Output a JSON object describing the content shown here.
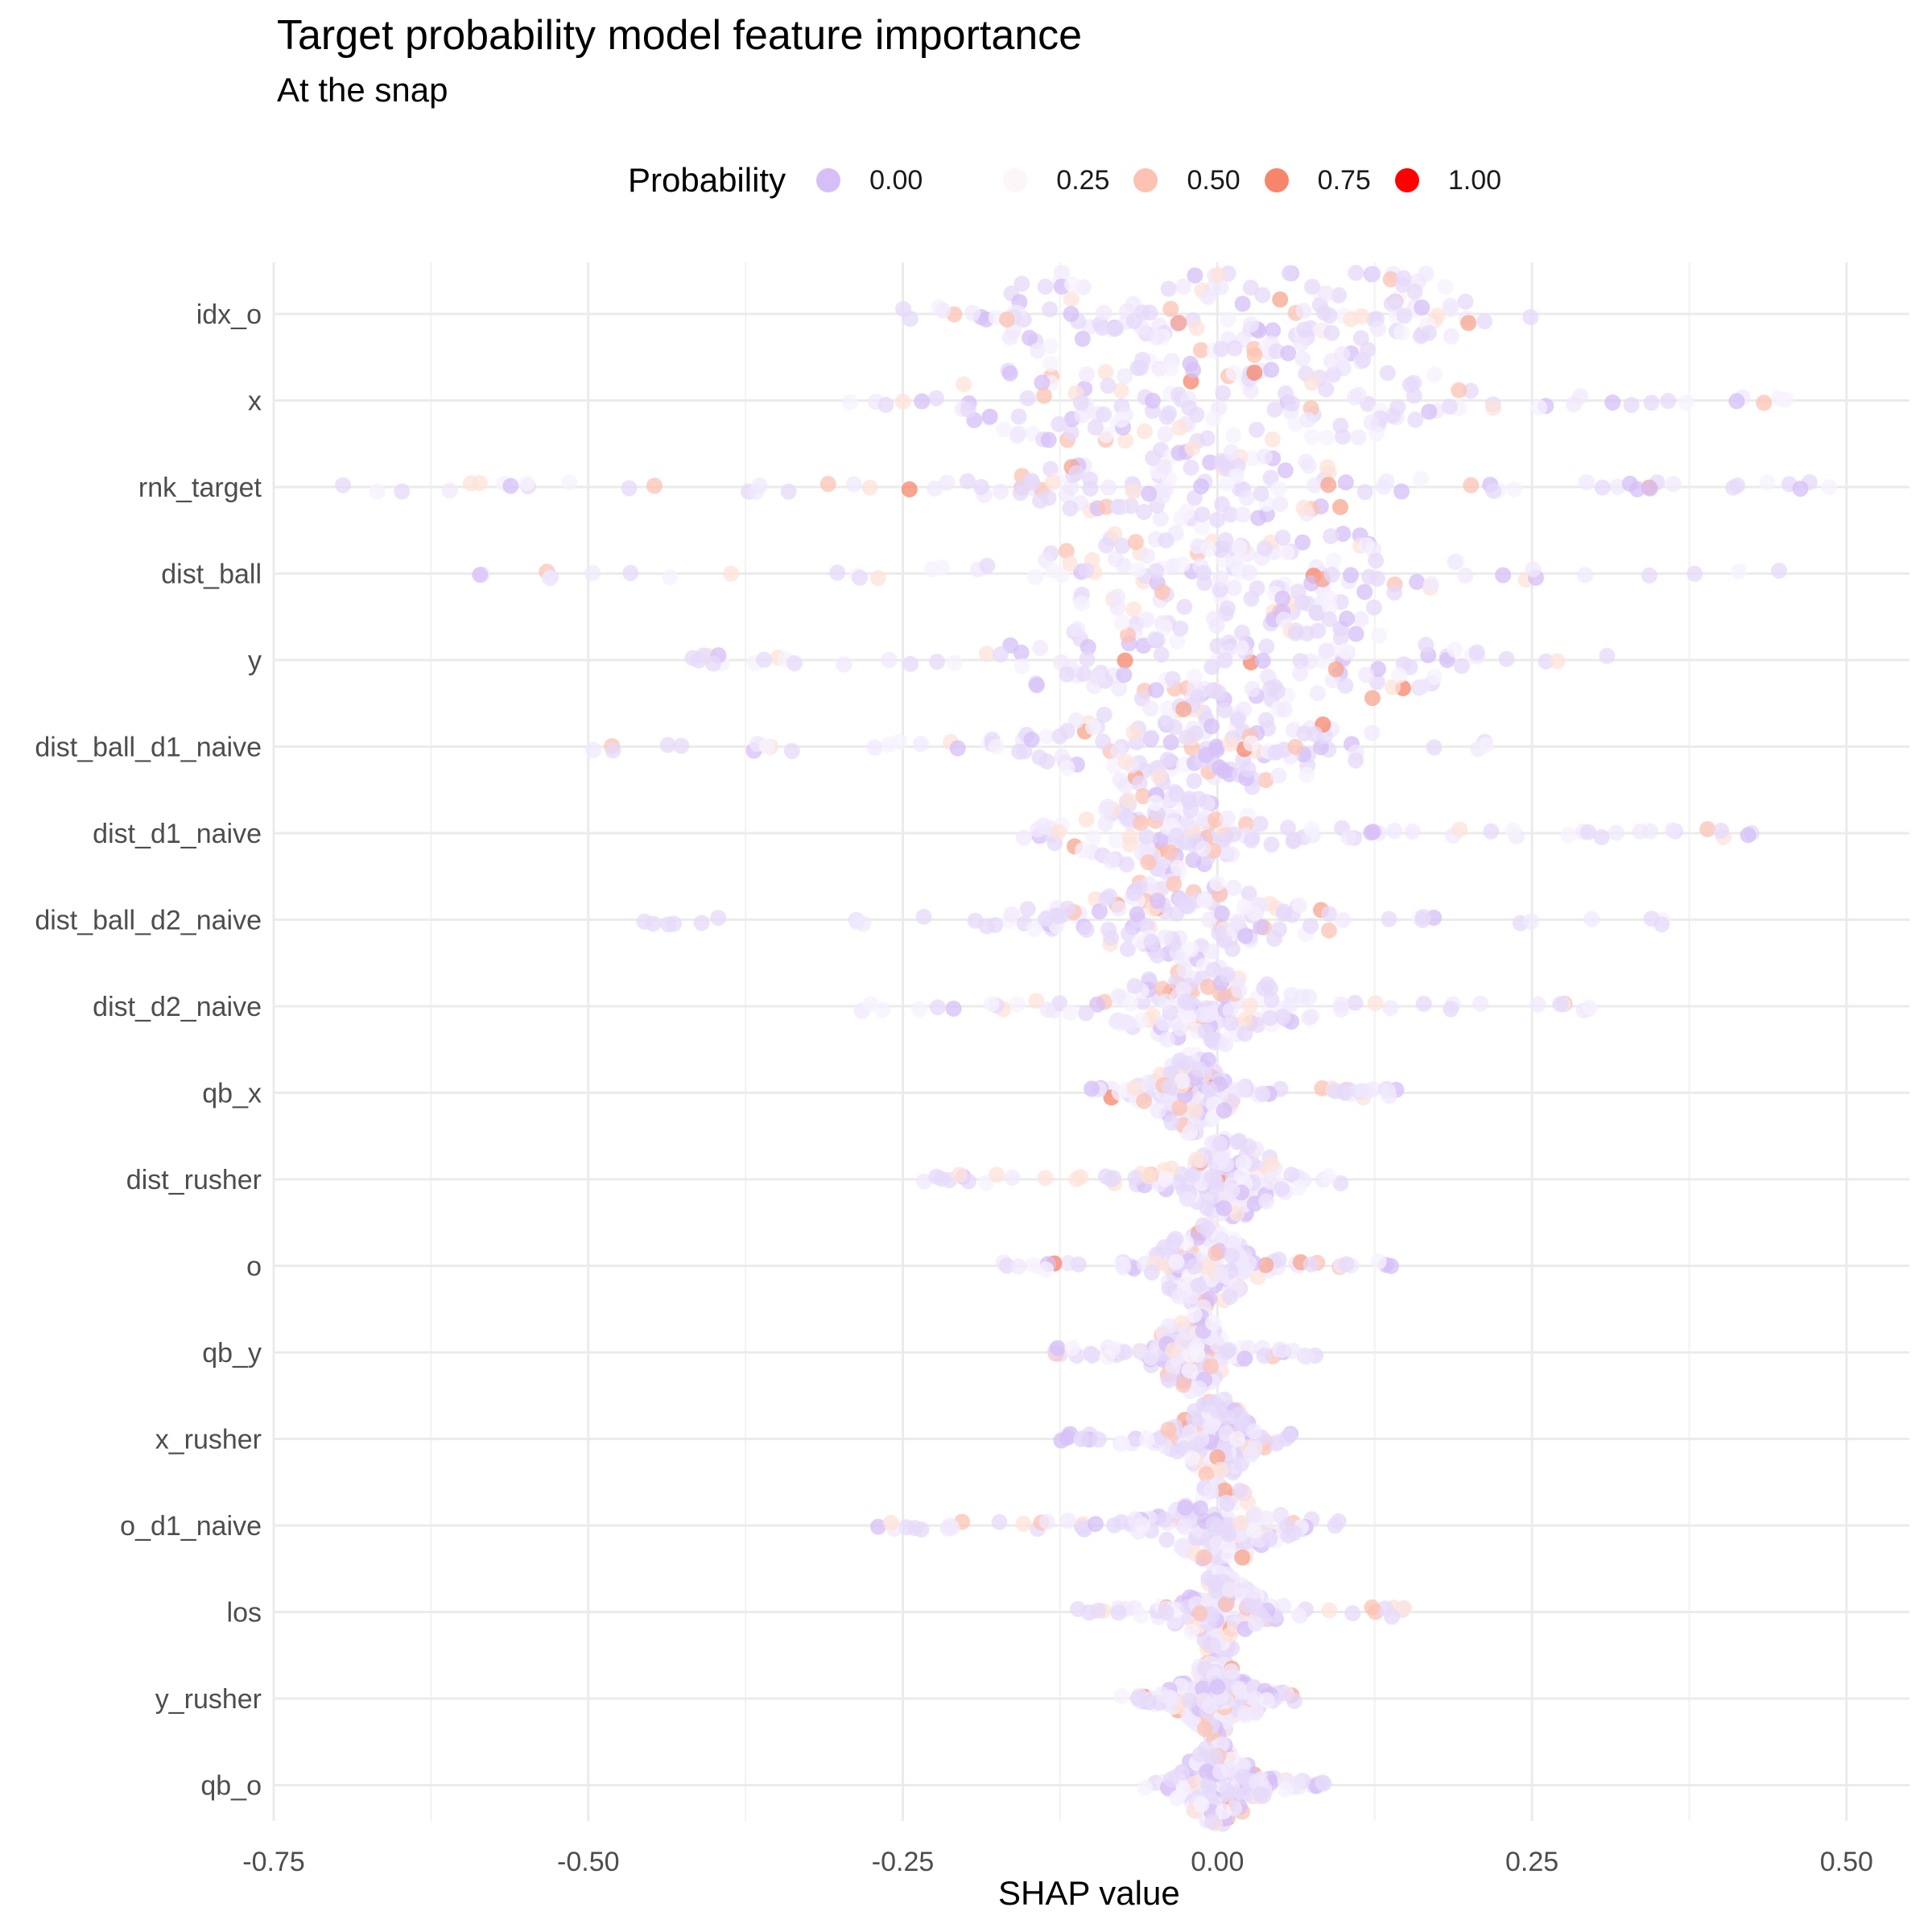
{
  "title": "Target probability model feature importance",
  "subtitle": "At the snap",
  "legend": {
    "title": "Probability",
    "items": [
      {
        "label": "0.00",
        "color": "#d6bff7"
      },
      {
        "label": "0.25",
        "color": "#ffffff"
      },
      {
        "label": "0.50",
        "color": "#fcc3b3"
      },
      {
        "label": "0.75",
        "color": "#f7856b"
      },
      {
        "label": "1.00",
        "color": "#ff0000"
      }
    ]
  },
  "chart_data": {
    "type": "scatter",
    "subtype": "beeswarm-violin",
    "title": "Target probability model feature importance",
    "subtitle": "At the snap",
    "xlabel": "SHAP value",
    "ylabel": "",
    "xlim": [
      -0.75,
      0.55
    ],
    "xticks": [
      "-0.75",
      "-0.50",
      "-0.25",
      "0.00",
      "0.25",
      "0.50"
    ],
    "grid": true,
    "legend_position": "top",
    "color_scale": {
      "name": "Probability",
      "low": "#d6bff7",
      "mid": "#ffffff",
      "high": "#ff0000",
      "midpoint": 0.25
    },
    "features": [
      {
        "name": "idx_o",
        "min": -0.25,
        "max": 0.25,
        "modes": [
          -0.13,
          0.0,
          0.07,
          0.15
        ]
      },
      {
        "name": "x",
        "min": -0.31,
        "max": 0.46,
        "modes": [
          -0.12,
          0.0,
          0.12
        ]
      },
      {
        "name": "rnk_target",
        "min": -0.7,
        "max": 0.52,
        "modes": [
          -0.02
        ]
      },
      {
        "name": "dist_ball",
        "min": -0.59,
        "max": 0.45,
        "modes": [
          -0.02,
          0.05
        ]
      },
      {
        "name": "y",
        "min": -0.44,
        "max": 0.31,
        "modes": [
          -0.08,
          0.02,
          0.1
        ]
      },
      {
        "name": "dist_ball_d1_naive",
        "min": -0.5,
        "max": 0.24,
        "modes": [
          -0.05,
          0.03
        ]
      },
      {
        "name": "dist_d1_naive",
        "min": -0.17,
        "max": 0.44,
        "modes": [
          -0.04
        ]
      },
      {
        "name": "dist_ball_d2_naive",
        "min": -0.47,
        "max": 0.38,
        "modes": [
          -0.03
        ]
      },
      {
        "name": "dist_d2_naive",
        "min": -0.3,
        "max": 0.3,
        "modes": [
          -0.01
        ]
      },
      {
        "name": "qb_x",
        "min": -0.1,
        "max": 0.15,
        "modes": [
          -0.02
        ]
      },
      {
        "name": "dist_rusher",
        "min": -0.24,
        "max": 0.1,
        "modes": [
          0.01
        ]
      },
      {
        "name": "o",
        "min": -0.17,
        "max": 0.15,
        "modes": [
          -0.01
        ]
      },
      {
        "name": "qb_y",
        "min": -0.13,
        "max": 0.08,
        "modes": [
          -0.02
        ]
      },
      {
        "name": "x_rusher",
        "min": -0.13,
        "max": 0.06,
        "modes": [
          0.0
        ]
      },
      {
        "name": "o_d1_naive",
        "min": -0.29,
        "max": 0.1,
        "modes": [
          0.0
        ]
      },
      {
        "name": "los",
        "min": -0.12,
        "max": 0.15,
        "modes": [
          0.0
        ]
      },
      {
        "name": "y_rusher",
        "min": -0.08,
        "max": 0.07,
        "modes": [
          0.0
        ]
      },
      {
        "name": "qb_o",
        "min": -0.06,
        "max": 0.09,
        "modes": [
          0.0
        ]
      }
    ]
  }
}
